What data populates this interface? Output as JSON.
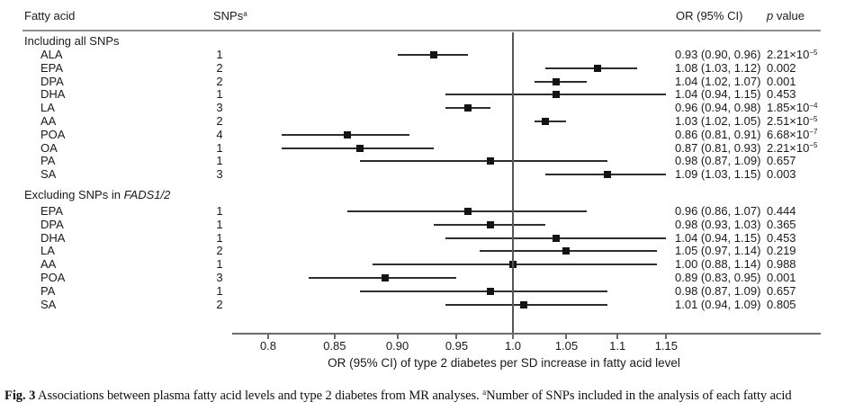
{
  "header": {
    "col_fatty_acid": "Fatty acid",
    "col_snps": "SNPs",
    "col_snps_sup": "a",
    "col_or": "OR (95% CI)",
    "col_p_italic": "p",
    "col_p_rest": " value"
  },
  "axis": {
    "label": "OR (95% CI) of type 2 diabetes per SD increase in fatty acid level",
    "tick_labels": [
      "0.8",
      "0.85",
      "0.90",
      "0.95",
      "1.0",
      "1.05",
      "1.1",
      "1.15"
    ],
    "ref_line_value": "1.0",
    "scale": "log"
  },
  "caption": {
    "fig_label": "Fig. 3",
    "text_before_sup": "  Associations between plasma fatty acid levels and type 2 diabetes from MR analyses. ",
    "sup": "a",
    "text_after_sup": "Number of SNPs included in the analysis of each fatty acid"
  },
  "colors": {
    "text": "#1a1a1a",
    "marker": "#141414",
    "ci_line": "#2e2e2e",
    "rule": "#8f8f8f",
    "axis": "#6b6b6b"
  },
  "chart_data": {
    "type": "forest",
    "x_scale": "log",
    "ref_line": 1.0,
    "x_ticks": [
      0.8,
      0.85,
      0.9,
      0.95,
      1.0,
      1.05,
      1.1,
      1.15
    ],
    "xlabel": "OR (95% CI) of type 2 diabetes per SD increase in fatty acid level",
    "sections": [
      {
        "title": "Including all SNPs",
        "title_italic": "",
        "rows": [
          {
            "label": "ALA",
            "snps": "1",
            "or": 0.93,
            "lo": 0.9,
            "hi": 0.96,
            "or_ci_text": "0.93 (0.90, 0.96)",
            "p": "2.21×10",
            "p_sup": "−5"
          },
          {
            "label": "EPA",
            "snps": "2",
            "or": 1.08,
            "lo": 1.03,
            "hi": 1.12,
            "or_ci_text": "1.08 (1.03, 1.12)",
            "p": "0.002",
            "p_sup": ""
          },
          {
            "label": "DPA",
            "snps": "2",
            "or": 1.04,
            "lo": 1.02,
            "hi": 1.07,
            "or_ci_text": "1.04 (1.02, 1.07)",
            "p": "0.001",
            "p_sup": ""
          },
          {
            "label": "DHA",
            "snps": "1",
            "or": 1.04,
            "lo": 0.94,
            "hi": 1.15,
            "or_ci_text": "1.04 (0.94, 1.15)",
            "p": "0.453",
            "p_sup": ""
          },
          {
            "label": "LA",
            "snps": "3",
            "or": 0.96,
            "lo": 0.94,
            "hi": 0.98,
            "or_ci_text": "0.96 (0.94, 0.98)",
            "p": "1.85×10",
            "p_sup": "−4"
          },
          {
            "label": "AA",
            "snps": "2",
            "or": 1.03,
            "lo": 1.02,
            "hi": 1.05,
            "or_ci_text": "1.03 (1.02, 1.05)",
            "p": "2.51×10",
            "p_sup": "−5"
          },
          {
            "label": "POA",
            "snps": "4",
            "or": 0.86,
            "lo": 0.81,
            "hi": 0.91,
            "or_ci_text": "0.86 (0.81, 0.91)",
            "p": "6.68×10",
            "p_sup": "−7"
          },
          {
            "label": "OA",
            "snps": "1",
            "or": 0.87,
            "lo": 0.81,
            "hi": 0.93,
            "or_ci_text": "0.87 (0.81, 0.93)",
            "p": "2.21×10",
            "p_sup": "−5"
          },
          {
            "label": "PA",
            "snps": "1",
            "or": 0.98,
            "lo": 0.87,
            "hi": 1.09,
            "or_ci_text": "0.98 (0.87, 1.09)",
            "p": "0.657",
            "p_sup": ""
          },
          {
            "label": "SA",
            "snps": "3",
            "or": 1.09,
            "lo": 1.03,
            "hi": 1.15,
            "or_ci_text": "1.09 (1.03, 1.15)",
            "p": "0.003",
            "p_sup": ""
          }
        ]
      },
      {
        "title": "Excluding SNPs in ",
        "title_italic": "FADS1/2",
        "rows": [
          {
            "label": "EPA",
            "snps": "1",
            "or": 0.96,
            "lo": 0.86,
            "hi": 1.07,
            "or_ci_text": "0.96 (0.86, 1.07)",
            "p": "0.444",
            "p_sup": ""
          },
          {
            "label": "DPA",
            "snps": "1",
            "or": 0.98,
            "lo": 0.93,
            "hi": 1.03,
            "or_ci_text": "0.98 (0.93, 1.03)",
            "p": "0.365",
            "p_sup": ""
          },
          {
            "label": "DHA",
            "snps": "1",
            "or": 1.04,
            "lo": 0.94,
            "hi": 1.15,
            "or_ci_text": "1.04 (0.94, 1.15)",
            "p": "0.453",
            "p_sup": ""
          },
          {
            "label": "LA",
            "snps": "2",
            "or": 1.05,
            "lo": 0.97,
            "hi": 1.14,
            "or_ci_text": "1.05 (0.97, 1.14)",
            "p": "0.219",
            "p_sup": ""
          },
          {
            "label": "AA",
            "snps": "1",
            "or": 1.0,
            "lo": 0.88,
            "hi": 1.14,
            "or_ci_text": "1.00 (0.88, 1.14)",
            "p": "0.988",
            "p_sup": ""
          },
          {
            "label": "POA",
            "snps": "3",
            "or": 0.89,
            "lo": 0.83,
            "hi": 0.95,
            "or_ci_text": "0.89 (0.83, 0.95)",
            "p": "0.001",
            "p_sup": ""
          },
          {
            "label": "PA",
            "snps": "1",
            "or": 0.98,
            "lo": 0.87,
            "hi": 1.09,
            "or_ci_text": "0.98 (0.87, 1.09)",
            "p": "0.657",
            "p_sup": ""
          },
          {
            "label": "SA",
            "snps": "2",
            "or": 1.01,
            "lo": 0.94,
            "hi": 1.09,
            "or_ci_text": "1.01 (0.94, 1.09)",
            "p": "0.805",
            "p_sup": ""
          }
        ]
      }
    ]
  }
}
